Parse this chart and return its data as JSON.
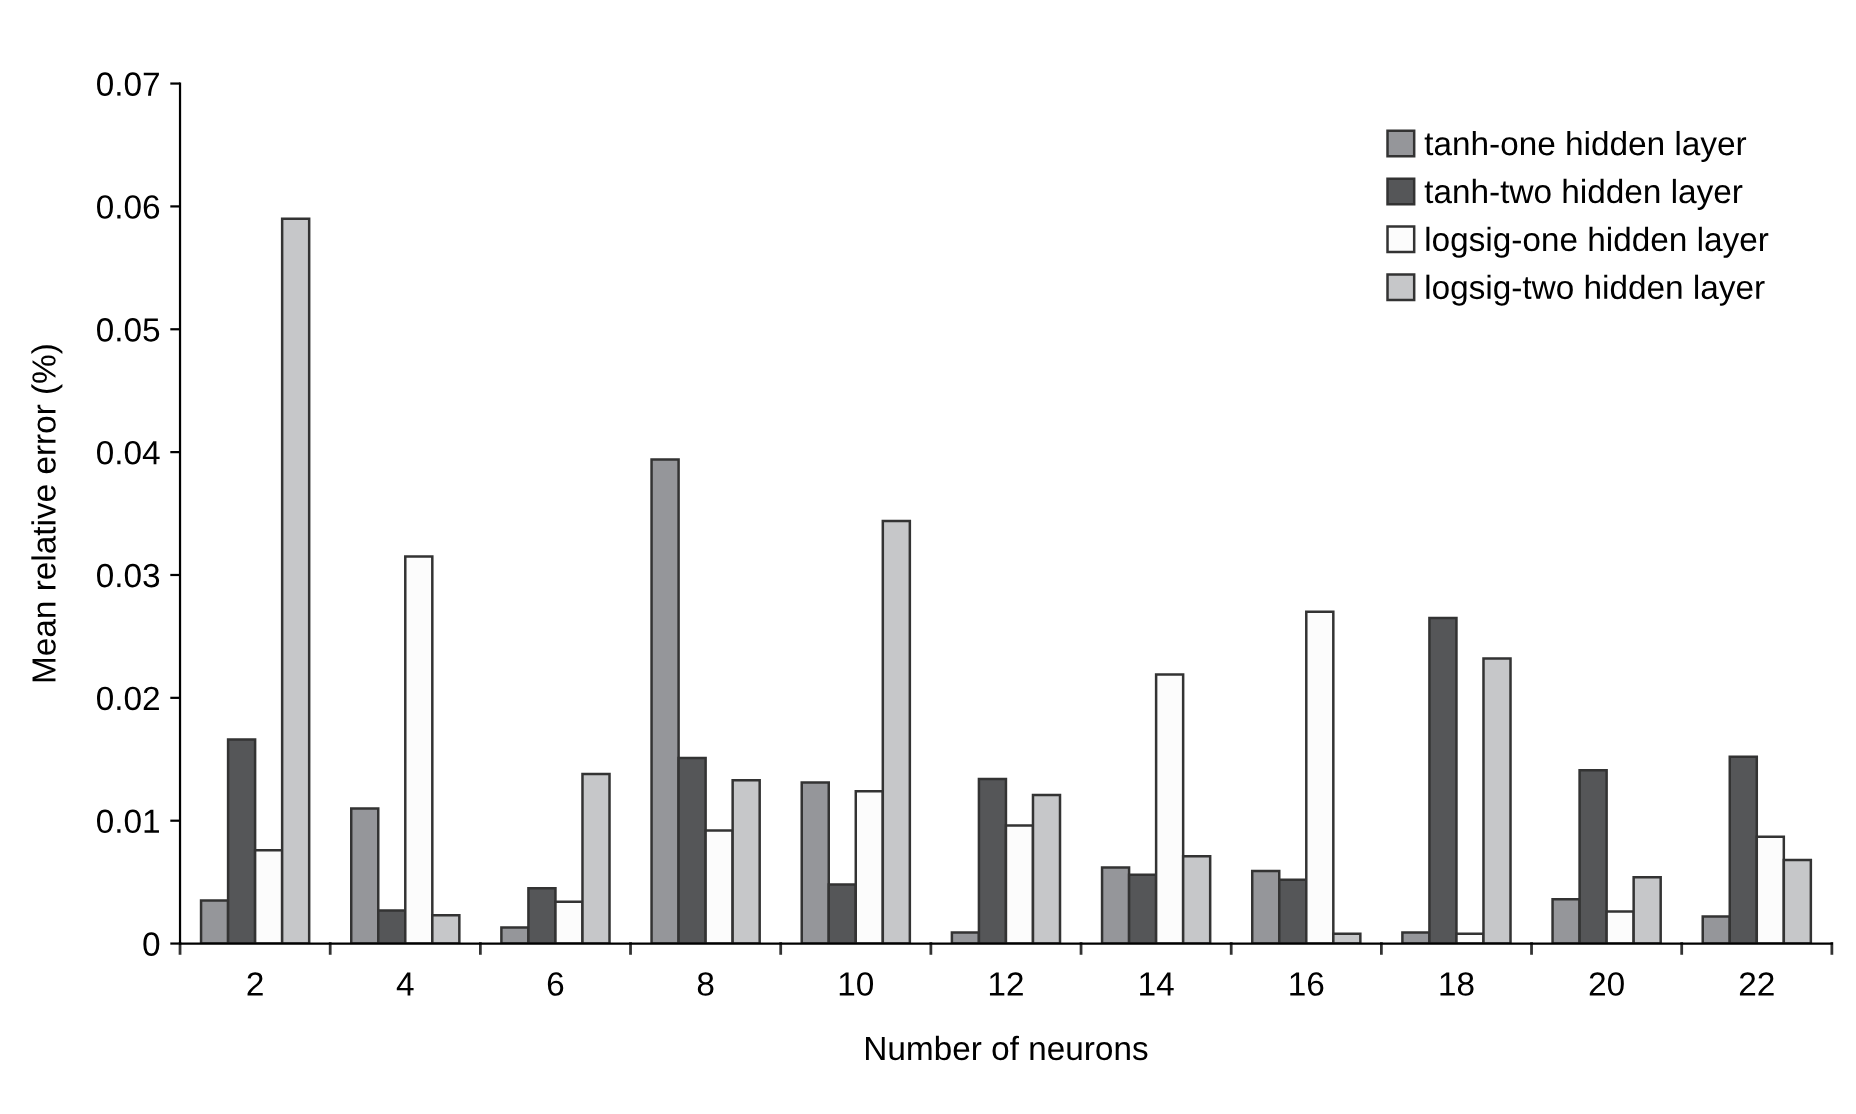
{
  "chart_data": {
    "type": "bar",
    "xlabel": "Number of neurons",
    "ylabel": "Mean relative error (%)",
    "categories": [
      "2",
      "4",
      "6",
      "8",
      "10",
      "12",
      "14",
      "16",
      "18",
      "20",
      "22"
    ],
    "series": [
      {
        "name": "tanh-one hidden layer",
        "color": "#95969a",
        "values": [
          0.0035,
          0.011,
          0.0013,
          0.0394,
          0.0131,
          0.0009,
          0.0062,
          0.0059,
          0.0009,
          0.0036,
          0.0022
        ]
      },
      {
        "name": "tanh-two hidden layer",
        "color": "#555658",
        "values": [
          0.0166,
          0.0027,
          0.0045,
          0.0151,
          0.0048,
          0.0134,
          0.0056,
          0.0052,
          0.0265,
          0.0141,
          0.0152
        ]
      },
      {
        "name": "logsig-one hidden layer",
        "color": "#fcfcfc",
        "values": [
          0.0076,
          0.0315,
          0.0034,
          0.0092,
          0.0124,
          0.0096,
          0.0219,
          0.027,
          0.0008,
          0.0026,
          0.0087
        ]
      },
      {
        "name": "logsig-two hidden layer",
        "color": "#c6c7c9",
        "values": [
          0.059,
          0.0023,
          0.0138,
          0.0133,
          0.0344,
          0.0121,
          0.0071,
          0.0008,
          0.0232,
          0.0054,
          0.0068
        ]
      }
    ],
    "ylim": [
      0,
      0.07
    ],
    "yticks": [
      {
        "value": 0,
        "label": "0"
      },
      0.01,
      0.02,
      0.03,
      0.04,
      0.05,
      0.06,
      0.07
    ],
    "grid": false,
    "legend": "top right"
  }
}
